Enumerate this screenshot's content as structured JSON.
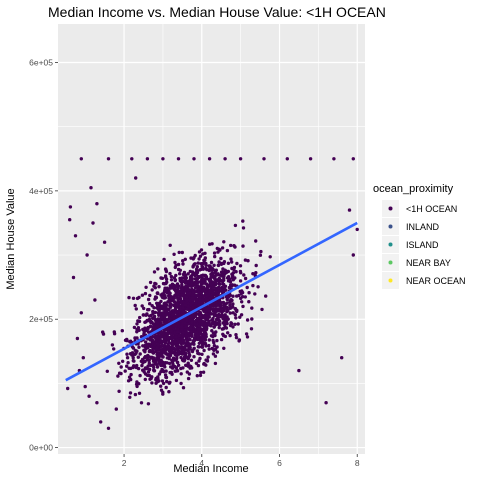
{
  "chart_data": {
    "type": "scatter",
    "title": "Median Income vs. Median House Value: <1H OCEAN",
    "xlabel": "Median Income",
    "ylabel": "Median House Value",
    "xlim": [
      0.3,
      8.2
    ],
    "ylim": [
      -10000,
      660000
    ],
    "x_ticks": [
      2,
      4,
      6,
      8
    ],
    "x_tick_labels": [
      "2",
      "4",
      "6",
      "8"
    ],
    "y_ticks": [
      0,
      200000,
      400000,
      600000
    ],
    "y_tick_labels": [
      "0e+00",
      "2e+05",
      "4e+05",
      "6e+05"
    ],
    "grid": true,
    "legend": {
      "title": "ocean_proximity",
      "placement": "right",
      "entries": [
        {
          "label": "<1H OCEAN",
          "color": "#440154"
        },
        {
          "label": "INLAND",
          "color": "#3B528B"
        },
        {
          "label": "ISLAND",
          "color": "#21908C"
        },
        {
          "label": "NEAR BAY",
          "color": "#5DC863"
        },
        {
          "label": "NEAR OCEAN",
          "color": "#FDE725"
        }
      ]
    },
    "series": [
      {
        "name": "<1H OCEAN",
        "color": "#440154",
        "points": [
          [
            0.55,
            92000
          ],
          [
            0.6,
            355000
          ],
          [
            0.62,
            375000
          ],
          [
            0.7,
            265000
          ],
          [
            0.75,
            330000
          ],
          [
            0.8,
            170000
          ],
          [
            0.85,
            120000
          ],
          [
            0.9,
            450000
          ],
          [
            0.9,
            210000
          ],
          [
            0.95,
            140000
          ],
          [
            1.0,
            95000
          ],
          [
            1.05,
            300000
          ],
          [
            1.1,
            80000
          ],
          [
            1.15,
            405000
          ],
          [
            1.2,
            350000
          ],
          [
            1.25,
            230000
          ],
          [
            1.3,
            70000
          ],
          [
            1.4,
            40000
          ],
          [
            1.45,
            180000
          ],
          [
            1.5,
            320000
          ],
          [
            1.6,
            450000
          ],
          [
            1.7,
            160000
          ],
          [
            1.8,
            60000
          ],
          [
            2.2,
            450000
          ],
          [
            2.6,
            450000
          ],
          [
            3.0,
            450000
          ],
          [
            3.4,
            450000
          ],
          [
            3.8,
            450000
          ],
          [
            4.2,
            450000
          ],
          [
            4.6,
            450000
          ],
          [
            5.0,
            450000
          ],
          [
            5.6,
            450000
          ],
          [
            6.2,
            450000
          ],
          [
            6.8,
            450000
          ],
          [
            7.4,
            450000
          ],
          [
            7.9,
            450000
          ],
          [
            7.6,
            140000
          ],
          [
            7.8,
            370000
          ],
          [
            7.9,
            300000
          ],
          [
            8.0,
            340000
          ],
          [
            7.2,
            70000
          ],
          [
            6.5,
            120000
          ],
          [
            1.6,
            30000
          ],
          [
            2.3,
            420000
          ],
          [
            1.3,
            380000
          ]
        ]
      }
    ],
    "trend": {
      "type": "linear",
      "color": "#3366FF",
      "x": [
        0.5,
        8.0
      ],
      "y": [
        105000,
        350000
      ]
    }
  }
}
